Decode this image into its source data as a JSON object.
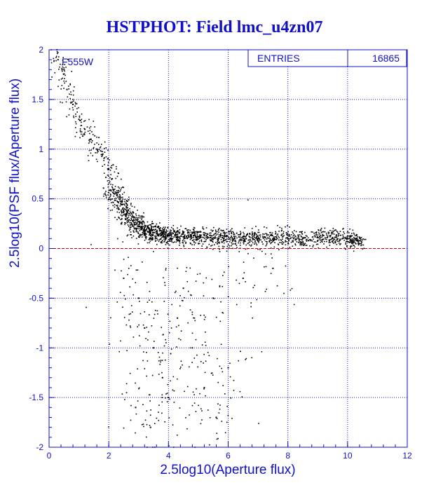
{
  "colors": {
    "frame": "#1010c8",
    "text": "#1010c8",
    "grid": "#1010c8",
    "points": "#000000",
    "reference_line": "#d00000",
    "background": "#ffffff"
  },
  "stats_box": {
    "label": "ENTRIES",
    "value": "16865"
  },
  "filter_label": "F555W",
  "chart_data": {
    "type": "scatter",
    "title": "HSTPHOT: Field lmc_u4zn07",
    "xlabel": "2.5log10(Aperture flux)",
    "ylabel": "2.5log10(PSF flux/Aperture flux)",
    "xlim": [
      0,
      12
    ],
    "ylim": [
      -2,
      2
    ],
    "x_ticks": [
      0,
      2,
      4,
      6,
      8,
      10,
      12
    ],
    "x_tick_labels": [
      "0",
      "2",
      "4",
      "6",
      "8",
      "10",
      "12"
    ],
    "y_ticks": [
      -2,
      -1.5,
      -1,
      -0.5,
      0,
      0.5,
      1,
      1.5,
      2
    ],
    "y_tick_labels": [
      "-2",
      "-1.5",
      "-1",
      "-0.5",
      "0",
      "0.5",
      "1",
      "1.5",
      "2"
    ],
    "grid": true,
    "grid_style": "dotted",
    "reference_line": {
      "y": 0,
      "style": "dashed"
    },
    "entries": 16865,
    "series": [
      {
        "description": "main ridge",
        "points": [
          [
            2.2,
            0.55
          ],
          [
            2.4,
            0.45
          ],
          [
            2.6,
            0.35
          ],
          [
            2.8,
            0.28
          ],
          [
            3.0,
            0.22
          ],
          [
            3.2,
            0.18
          ],
          [
            3.4,
            0.16
          ],
          [
            3.6,
            0.15
          ],
          [
            3.8,
            0.14
          ],
          [
            4.0,
            0.13
          ],
          [
            4.3,
            0.12
          ],
          [
            4.6,
            0.12
          ],
          [
            5.0,
            0.12
          ],
          [
            5.4,
            0.11
          ],
          [
            5.8,
            0.11
          ],
          [
            6.2,
            0.1
          ],
          [
            6.6,
            0.1
          ],
          [
            7.0,
            0.1
          ],
          [
            7.5,
            0.1
          ],
          [
            8.0,
            0.1
          ],
          [
            8.5,
            0.1
          ],
          [
            9.0,
            0.11
          ],
          [
            9.5,
            0.11
          ],
          [
            10.0,
            0.1
          ],
          [
            10.3,
            0.08
          ]
        ]
      },
      {
        "description": "bright upper branch",
        "points": [
          [
            0.3,
            1.9
          ],
          [
            0.5,
            1.8
          ],
          [
            0.6,
            1.6
          ],
          [
            0.8,
            1.45
          ],
          [
            1.0,
            1.3
          ],
          [
            1.2,
            1.2
          ],
          [
            1.4,
            1.1
          ],
          [
            1.6,
            1.0
          ],
          [
            1.8,
            0.95
          ],
          [
            2.0,
            0.8
          ],
          [
            2.1,
            0.7
          ]
        ]
      },
      {
        "description": "negative scatter tail",
        "points": [
          [
            2.5,
            -0.3
          ],
          [
            3.0,
            -0.5
          ],
          [
            3.2,
            -0.8
          ],
          [
            3.5,
            -1.0
          ],
          [
            3.8,
            -1.3
          ],
          [
            4.0,
            -1.5
          ],
          [
            4.3,
            -0.7
          ],
          [
            4.8,
            -1.0
          ],
          [
            5.2,
            -1.4
          ],
          [
            5.6,
            -1.7
          ],
          [
            6.0,
            -1.2
          ],
          [
            3.4,
            -1.8
          ],
          [
            2.9,
            -1.6
          ],
          [
            4.5,
            -0.4
          ],
          [
            5.5,
            -0.5
          ],
          [
            6.5,
            -0.3
          ],
          [
            7.5,
            -0.2
          ]
        ]
      }
    ]
  }
}
